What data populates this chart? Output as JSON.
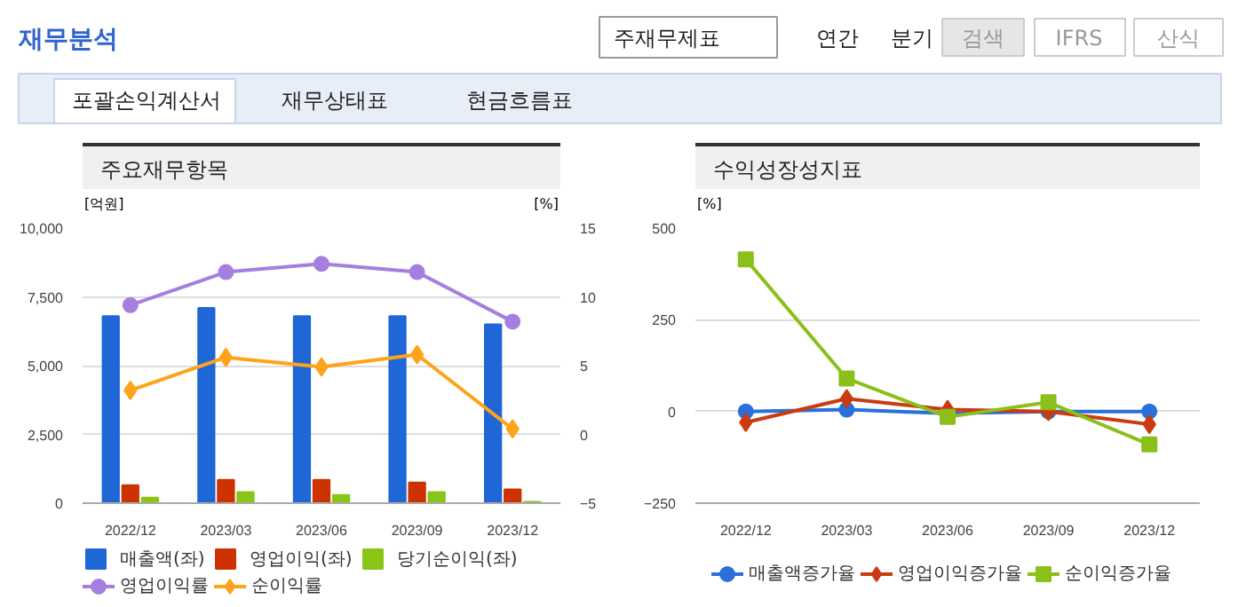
{
  "chart_data": [
    {
      "type": "other",
      "annotations": [
        "재무분석",
        "주재무제표",
        "연간",
        "분기",
        "검색",
        "IFRS",
        "산식",
        "포괄손익계산서",
        "재무상태표",
        "현금흐름표"
      ]
    },
    {
      "type": "bar",
      "title": "주요재무항목",
      "ylabel": "[억원]",
      "y2label": "[%]",
      "categories": [
        "2022/12",
        "2023/03",
        "2023/06",
        "2023/09",
        "2023/12"
      ],
      "series": [
        {
          "name": "매출액(좌)",
          "color": "#1f66d6",
          "values": [
            6800,
            7100,
            6800,
            6800,
            6500
          ]
        },
        {
          "name": "영업이익(좌)",
          "color": "#cc3300",
          "values": [
            650,
            850,
            850,
            750,
            500
          ]
        },
        {
          "name": "당기순이익(좌)",
          "color": "#88c516",
          "values": [
            200,
            400,
            300,
            400,
            50
          ]
        },
        {
          "name": "영업이익률",
          "type": "line",
          "axis": "y2",
          "marker": "circle",
          "color": "#a57fe0",
          "values": [
            9.4,
            11.8,
            12.4,
            11.8,
            8.2
          ]
        },
        {
          "name": "순이익률",
          "type": "line",
          "axis": "y2",
          "marker": "diamond",
          "color": "#ffa31a",
          "values": [
            3.2,
            5.6,
            4.9,
            5.8,
            0.4
          ]
        }
      ],
      "ylim": [
        0,
        10000
      ],
      "yticks": [
        0,
        {
          "value": 2500,
          "label": "2,500"
        },
        {
          "value": 5000,
          "label": "5,000"
        },
        {
          "value": 7500,
          "label": "7,500"
        },
        {
          "value": 10000,
          "label": "10,000"
        }
      ],
      "y2lim": [
        -5,
        15
      ],
      "y2ticks": [
        -5,
        0,
        5,
        10,
        15
      ],
      "grid": "y",
      "legend": "bottom"
    },
    {
      "type": "line",
      "title": "수익성장성지표",
      "ylabel": "[%]",
      "categories": [
        "2022/12",
        "2023/03",
        "2023/06",
        "2023/09",
        "2023/12"
      ],
      "series": [
        {
          "name": "매출액증가율",
          "marker": "circle",
          "color": "#2a6fdb",
          "values": [
            0,
            5,
            -5,
            0,
            0
          ]
        },
        {
          "name": "영업이익증가율",
          "marker": "diamond",
          "color": "#cc3a10",
          "values": [
            -30,
            35,
            5,
            0,
            -35
          ]
        },
        {
          "name": "순이익증가율",
          "marker": "square",
          "color": "#8cbf1a",
          "values": [
            415,
            90,
            -15,
            25,
            -90
          ]
        }
      ],
      "ylim": [
        -250,
        500
      ],
      "yticks": [
        -250,
        0,
        250,
        500
      ],
      "grid": "y",
      "legend": "bottom"
    }
  ]
}
